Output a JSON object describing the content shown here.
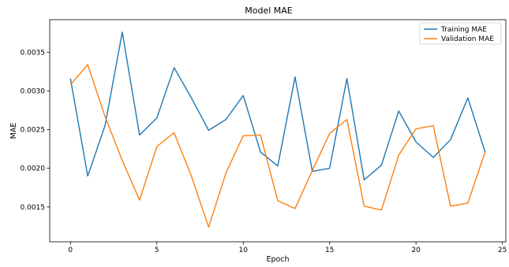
{
  "chart_data": {
    "type": "line",
    "title": "Model MAE",
    "xlabel": "Epoch",
    "ylabel": "MAE",
    "xlim": [
      -1.2,
      25.2
    ],
    "ylim": [
      0.00105,
      0.00392
    ],
    "xticks": [
      0,
      5,
      10,
      15,
      20,
      25
    ],
    "yticks": [
      0.0015,
      0.002,
      0.0025,
      0.003,
      0.0035
    ],
    "ytick_labels": [
      "0.0015",
      "0.0020",
      "0.0025",
      "0.0030",
      "0.0035"
    ],
    "grid": false,
    "legend": "top-right",
    "x": [
      0,
      1,
      2,
      3,
      4,
      5,
      6,
      7,
      8,
      9,
      10,
      11,
      12,
      13,
      14,
      15,
      16,
      17,
      18,
      19,
      20,
      21,
      22,
      23,
      24
    ],
    "series": [
      {
        "name": "Training MAE",
        "color": "#1f77b4",
        "values": [
          0.00316,
          0.0019,
          0.00255,
          0.00376,
          0.00243,
          0.00265,
          0.0033,
          0.00291,
          0.00249,
          0.00263,
          0.00294,
          0.00221,
          0.00203,
          0.00318,
          0.00196,
          0.002,
          0.00316,
          0.00185,
          0.00204,
          0.00274,
          0.00234,
          0.00214,
          0.00237,
          0.00291,
          0.00221
        ]
      },
      {
        "name": "Validation MAE",
        "color": "#ff7f0e",
        "values": [
          0.00308,
          0.00334,
          0.00267,
          0.0021,
          0.00159,
          0.00228,
          0.00246,
          0.0019,
          0.00124,
          0.00194,
          0.00242,
          0.00243,
          0.00158,
          0.00148,
          0.00197,
          0.00245,
          0.00263,
          0.00151,
          0.00146,
          0.00217,
          0.00251,
          0.00255,
          0.00151,
          0.00155,
          0.00221
        ]
      }
    ]
  }
}
